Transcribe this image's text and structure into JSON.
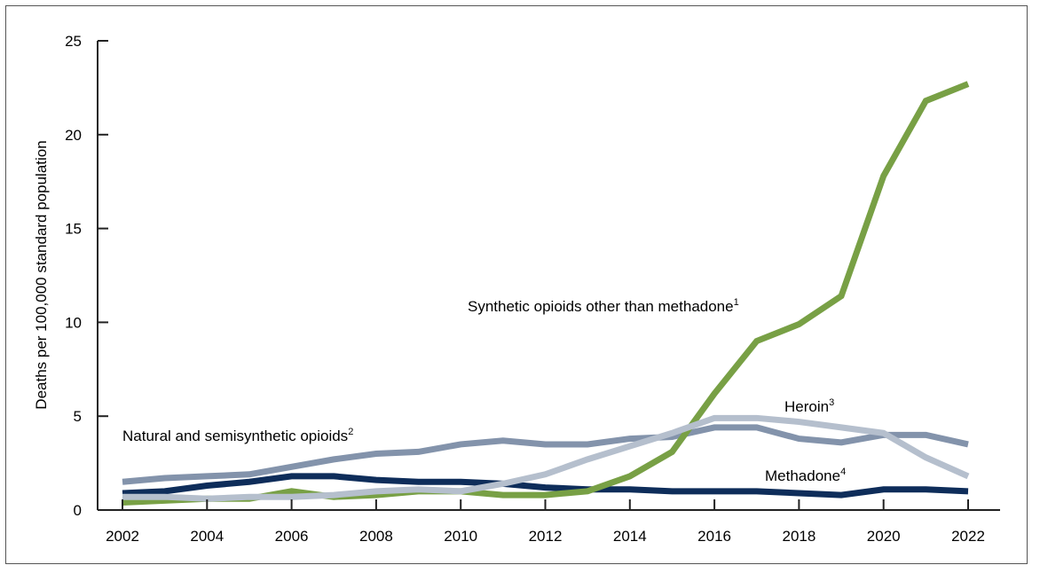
{
  "chart_data": {
    "type": "line",
    "title": "",
    "xlabel": "",
    "ylabel": "Deaths per 100,000 standard population",
    "xlim": [
      2002,
      2022
    ],
    "ylim": [
      0,
      25
    ],
    "x_ticks": [
      "2002",
      "2004",
      "2006",
      "2008",
      "2010",
      "2012",
      "2014",
      "2016",
      "2018",
      "2020",
      "2022"
    ],
    "y_ticks": [
      "0",
      "5",
      "10",
      "15",
      "20",
      "25"
    ],
    "grid": false,
    "x": [
      2002,
      2003,
      2004,
      2005,
      2006,
      2007,
      2008,
      2009,
      2010,
      2011,
      2012,
      2013,
      2014,
      2015,
      2016,
      2017,
      2018,
      2019,
      2020,
      2021,
      2022
    ],
    "series": [
      {
        "name": "Synthetic opioids other than methadone",
        "footnote": "1",
        "color": "#78a045",
        "values": [
          0.4,
          0.5,
          0.6,
          0.6,
          1.0,
          0.7,
          0.8,
          1.0,
          1.0,
          0.8,
          0.8,
          1.0,
          1.8,
          3.1,
          6.2,
          9.0,
          9.9,
          11.4,
          17.8,
          21.8,
          22.7
        ]
      },
      {
        "name": "Natural and semisynthetic opioids",
        "footnote": "2",
        "color": "#8393ab",
        "values": [
          1.5,
          1.7,
          1.8,
          1.9,
          2.3,
          2.7,
          3.0,
          3.1,
          3.5,
          3.7,
          3.5,
          3.5,
          3.8,
          3.9,
          4.4,
          4.4,
          3.8,
          3.6,
          4.0,
          4.0,
          3.5
        ]
      },
      {
        "name": "Heroin",
        "footnote": "3",
        "color": "#b5bfcd",
        "values": [
          0.7,
          0.7,
          0.6,
          0.7,
          0.7,
          0.8,
          1.0,
          1.1,
          1.0,
          1.4,
          1.9,
          2.7,
          3.4,
          4.1,
          4.9,
          4.9,
          4.7,
          4.4,
          4.1,
          2.8,
          1.8
        ]
      },
      {
        "name": "Methadone",
        "footnote": "4",
        "color": "#0e2d5a",
        "values": [
          0.9,
          1.0,
          1.3,
          1.5,
          1.8,
          1.8,
          1.6,
          1.5,
          1.5,
          1.4,
          1.2,
          1.1,
          1.1,
          1.0,
          1.0,
          1.0,
          0.9,
          0.8,
          1.1,
          1.1,
          1.0
        ]
      }
    ]
  }
}
